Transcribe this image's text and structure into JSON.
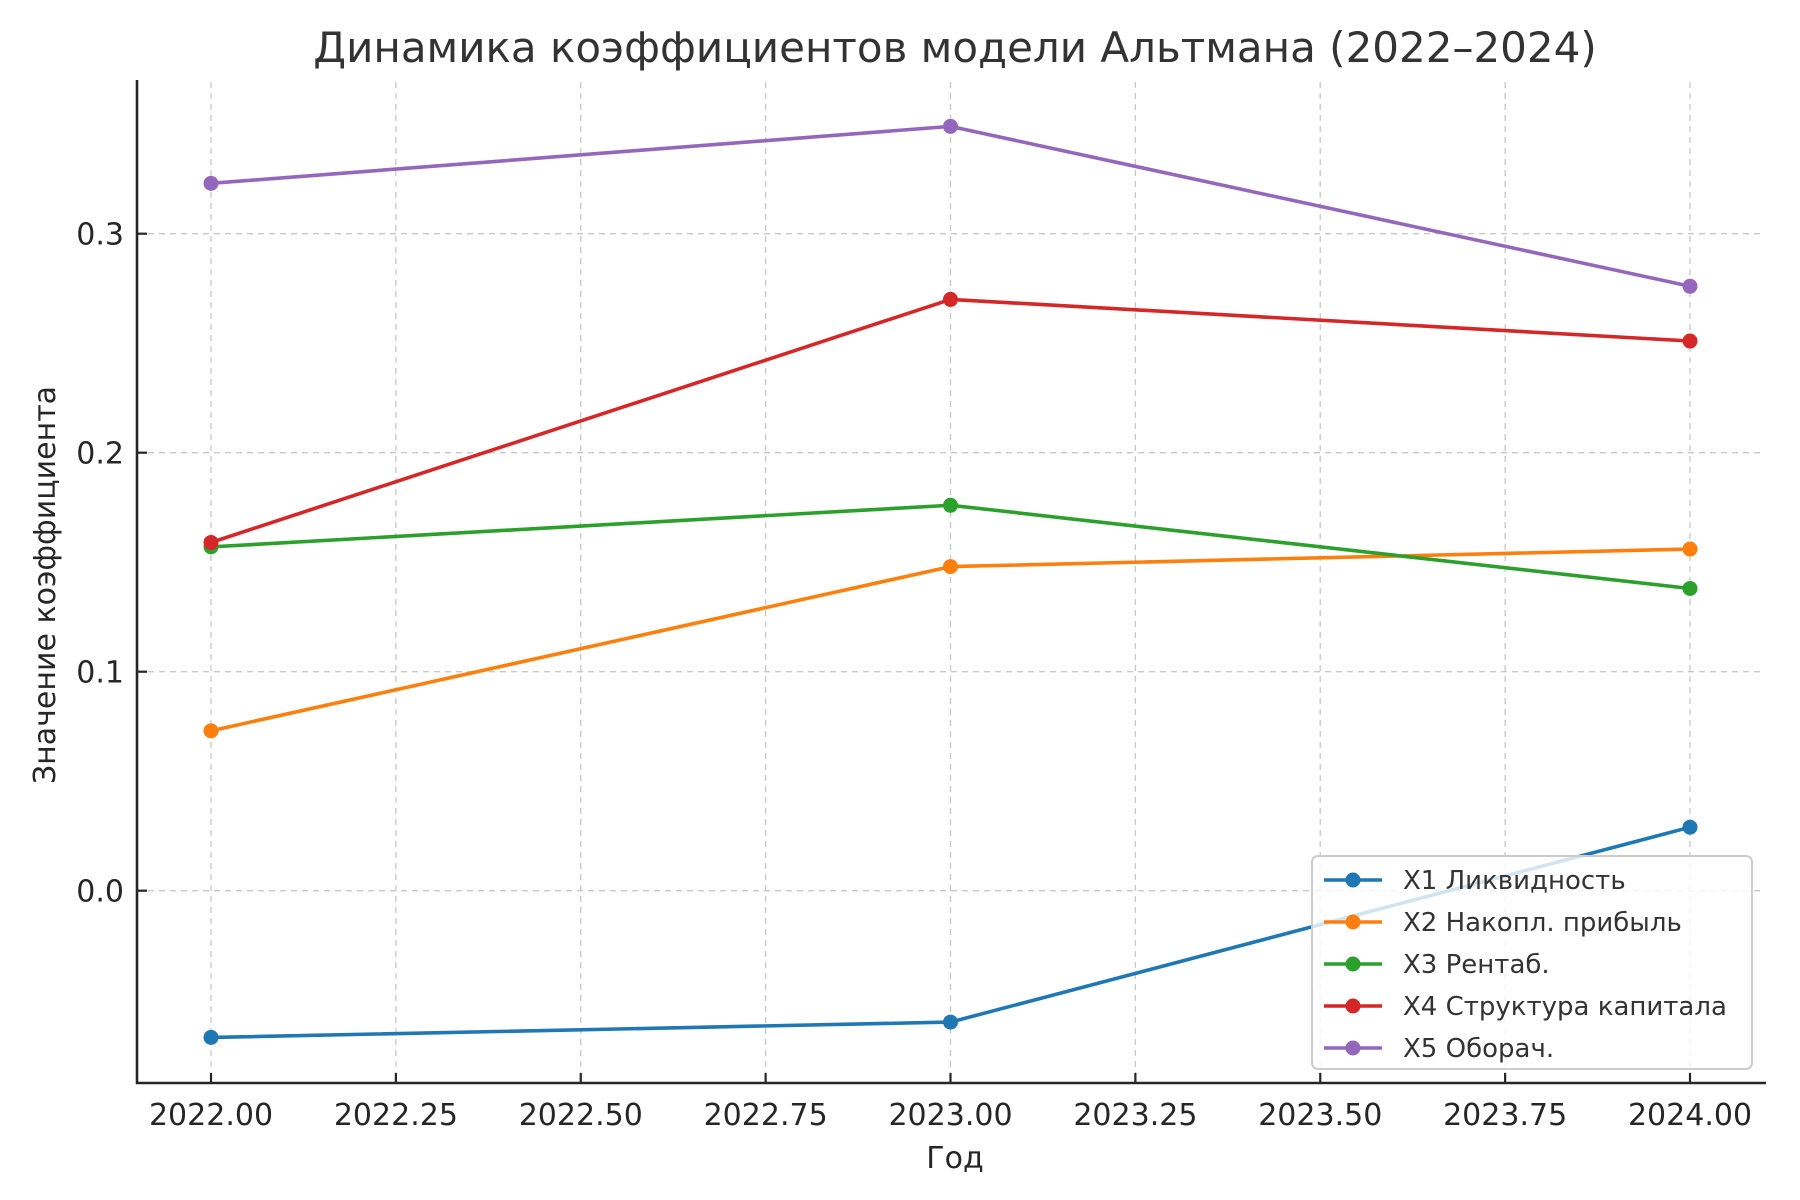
{
  "chart_data": {
    "type": "line",
    "title": "Динамика коэффициентов модели Альтмана (2022–2024)",
    "xlabel": "Год",
    "ylabel": "Значение коэффициента",
    "x": [
      2022,
      2023,
      2024
    ],
    "xlim": [
      2021.9,
      2024.1
    ],
    "ylim": [
      -0.088,
      0.369
    ],
    "x_ticks": [
      2022.0,
      2022.25,
      2022.5,
      2022.75,
      2023.0,
      2023.25,
      2023.5,
      2023.75,
      2024.0
    ],
    "x_tick_labels": [
      "2022.00",
      "2022.25",
      "2022.50",
      "2022.75",
      "2023.00",
      "2023.25",
      "2023.50",
      "2023.75",
      "2024.00"
    ],
    "y_ticks": [
      0.0,
      0.1,
      0.2,
      0.3
    ],
    "y_tick_labels": [
      "0.0",
      "0.1",
      "0.2",
      "0.3"
    ],
    "grid": true,
    "legend_position": "lower right",
    "series": [
      {
        "name": "X1 Ликвидность",
        "color": "#1f77b4",
        "values": [
          -0.067,
          -0.06,
          0.029
        ]
      },
      {
        "name": "X2 Накопл. прибыль",
        "color": "#ff7f0e",
        "values": [
          0.073,
          0.148,
          0.156
        ]
      },
      {
        "name": "X3 Рентаб.",
        "color": "#2ca02c",
        "values": [
          0.157,
          0.176,
          0.138
        ]
      },
      {
        "name": "X4 Структура капитала",
        "color": "#d62728",
        "values": [
          0.159,
          0.27,
          0.251
        ]
      },
      {
        "name": "X5 Оборач.",
        "color": "#9467bd",
        "values": [
          0.323,
          0.349,
          0.276
        ]
      }
    ]
  }
}
